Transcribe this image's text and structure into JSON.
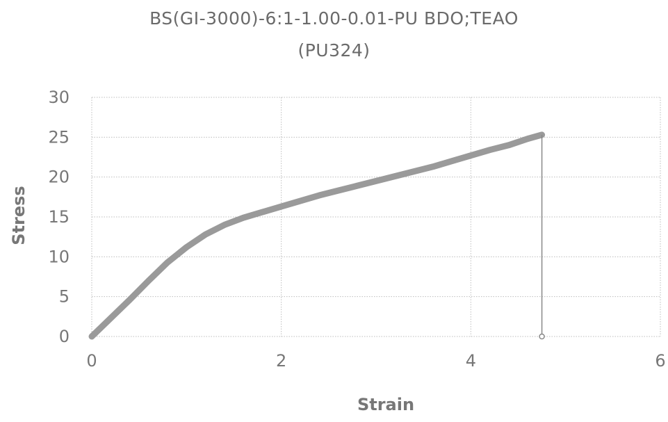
{
  "chart_data": {
    "type": "line",
    "title": "BS(GI-3000)-6:1-1.00-0.01-PU  BDO;TEAO",
    "subtitle": "(PU324)",
    "xlabel": "Strain",
    "ylabel": "Stress",
    "xlim": [
      0,
      6
    ],
    "ylim": [
      0,
      30
    ],
    "xticks": [
      0,
      2,
      4,
      6
    ],
    "yticks": [
      0,
      5,
      10,
      15,
      20,
      25,
      30
    ],
    "grid": true,
    "series": [
      {
        "x": [
          0,
          0.2,
          0.4,
          0.6,
          0.8,
          1.0,
          1.2,
          1.4,
          1.6,
          1.8,
          2.0,
          2.2,
          2.4,
          2.6,
          2.8,
          3.0,
          3.2,
          3.4,
          3.6,
          3.8,
          4.0,
          4.2,
          4.4,
          4.6,
          4.75,
          4.75
        ],
        "y": [
          0,
          2.3,
          4.6,
          7.0,
          9.3,
          11.2,
          12.8,
          14.0,
          14.9,
          15.6,
          16.3,
          17.0,
          17.7,
          18.3,
          18.9,
          19.5,
          20.1,
          20.7,
          21.3,
          22.0,
          22.7,
          23.4,
          24.0,
          24.8,
          25.3,
          0
        ]
      }
    ]
  }
}
